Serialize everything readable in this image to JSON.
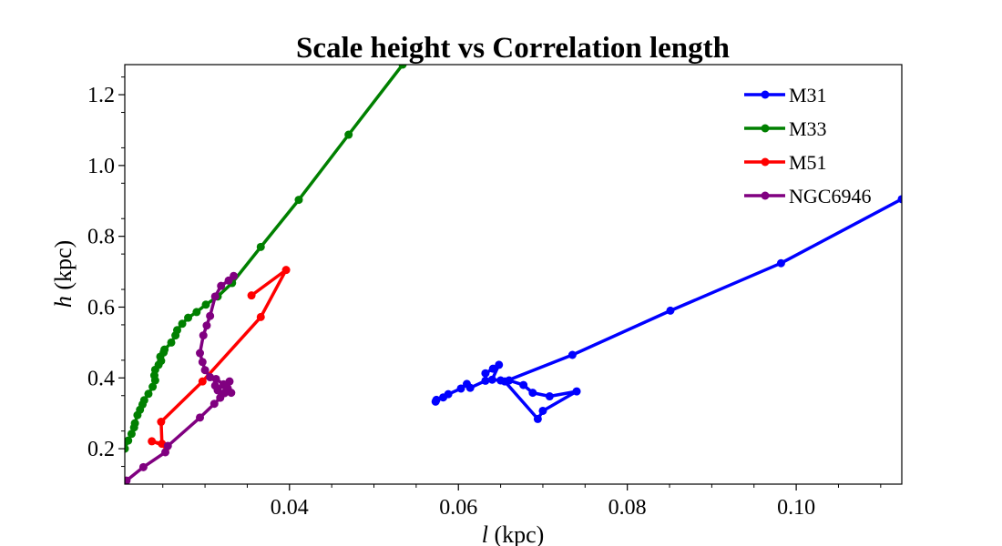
{
  "chart_data": {
    "type": "line",
    "title": "Scale height vs Correlation length",
    "xlabel": {
      "var": "l",
      "unit": " (kpc)"
    },
    "ylabel": {
      "var": "h",
      "unit": " (kpc)"
    },
    "xlim": [
      0.0205,
      0.1125
    ],
    "ylim": [
      0.1,
      1.285
    ],
    "xticks": [
      0.04,
      0.06,
      0.08,
      0.1
    ],
    "xtick_labels": [
      "0.04",
      "0.06",
      "0.08",
      "0.10"
    ],
    "yticks": [
      0.2,
      0.4,
      0.6,
      0.8,
      1.0,
      1.2
    ],
    "ytick_labels": [
      "0.2",
      "0.4",
      "0.6",
      "0.8",
      "1.0",
      "1.2"
    ],
    "grid": false,
    "legend_position": "top-right",
    "series": [
      {
        "name": "M31",
        "color": "#0000ff",
        "points": [
          [
            0.0573,
            0.333
          ],
          [
            0.0574,
            0.338
          ],
          [
            0.0582,
            0.345
          ],
          [
            0.0588,
            0.354
          ],
          [
            0.0603,
            0.37
          ],
          [
            0.061,
            0.383
          ],
          [
            0.0614,
            0.372
          ],
          [
            0.0632,
            0.392
          ],
          [
            0.0632,
            0.413
          ],
          [
            0.0641,
            0.426
          ],
          [
            0.0648,
            0.437
          ],
          [
            0.064,
            0.395
          ],
          [
            0.065,
            0.393
          ],
          [
            0.066,
            0.393
          ],
          [
            0.0677,
            0.38
          ],
          [
            0.0688,
            0.358
          ],
          [
            0.0708,
            0.348
          ],
          [
            0.074,
            0.362
          ],
          [
            0.07,
            0.307
          ],
          [
            0.0694,
            0.284
          ],
          [
            0.0655,
            0.39
          ],
          [
            0.0735,
            0.465
          ],
          [
            0.0851,
            0.59
          ],
          [
            0.0982,
            0.724
          ],
          [
            0.1125,
            0.905
          ]
        ]
      },
      {
        "name": "M33",
        "color": "#008000",
        "points": [
          [
            0.0205,
            0.2
          ],
          [
            0.0209,
            0.223
          ],
          [
            0.0213,
            0.242
          ],
          [
            0.0216,
            0.26
          ],
          [
            0.0217,
            0.272
          ],
          [
            0.022,
            0.295
          ],
          [
            0.0223,
            0.31
          ],
          [
            0.0226,
            0.325
          ],
          [
            0.0228,
            0.337
          ],
          [
            0.0233,
            0.355
          ],
          [
            0.0238,
            0.375
          ],
          [
            0.0241,
            0.393
          ],
          [
            0.024,
            0.407
          ],
          [
            0.0241,
            0.423
          ],
          [
            0.0245,
            0.437
          ],
          [
            0.0248,
            0.448
          ],
          [
            0.0247,
            0.46
          ],
          [
            0.0251,
            0.472
          ],
          [
            0.0252,
            0.48
          ],
          [
            0.026,
            0.5
          ],
          [
            0.0265,
            0.52
          ],
          [
            0.0267,
            0.535
          ],
          [
            0.0273,
            0.553
          ],
          [
            0.028,
            0.57
          ],
          [
            0.029,
            0.586
          ],
          [
            0.0301,
            0.607
          ],
          [
            0.0315,
            0.63
          ],
          [
            0.0332,
            0.668
          ],
          [
            0.0366,
            0.77
          ],
          [
            0.0411,
            0.903
          ],
          [
            0.047,
            1.087
          ],
          [
            0.0534,
            1.285
          ]
        ]
      },
      {
        "name": "M51",
        "color": "#ff0000",
        "points": [
          [
            0.0355,
            0.633
          ],
          [
            0.0396,
            0.705
          ],
          [
            0.0366,
            0.572
          ],
          [
            0.0297,
            0.39
          ],
          [
            0.0248,
            0.276
          ],
          [
            0.0249,
            0.214
          ],
          [
            0.0237,
            0.221
          ],
          [
            0.0255,
            0.206
          ]
        ]
      },
      {
        "name": "NGC6946",
        "color": "#800080",
        "points": [
          [
            0.0207,
            0.11
          ],
          [
            0.0227,
            0.148
          ],
          [
            0.0253,
            0.19
          ],
          [
            0.0256,
            0.208
          ],
          [
            0.0294,
            0.288
          ],
          [
            0.0311,
            0.327
          ],
          [
            0.0318,
            0.344
          ],
          [
            0.0323,
            0.357
          ],
          [
            0.0331,
            0.358
          ],
          [
            0.0327,
            0.37
          ],
          [
            0.0312,
            0.378
          ],
          [
            0.0315,
            0.365
          ],
          [
            0.032,
            0.355
          ],
          [
            0.0329,
            0.39
          ],
          [
            0.0322,
            0.382
          ],
          [
            0.0313,
            0.397
          ],
          [
            0.0306,
            0.402
          ],
          [
            0.03,
            0.422
          ],
          [
            0.0297,
            0.445
          ],
          [
            0.0294,
            0.47
          ],
          [
            0.0298,
            0.52
          ],
          [
            0.0302,
            0.548
          ],
          [
            0.0306,
            0.575
          ],
          [
            0.0312,
            0.63
          ],
          [
            0.0319,
            0.66
          ],
          [
            0.0328,
            0.675
          ],
          [
            0.0334,
            0.688
          ]
        ]
      }
    ]
  }
}
